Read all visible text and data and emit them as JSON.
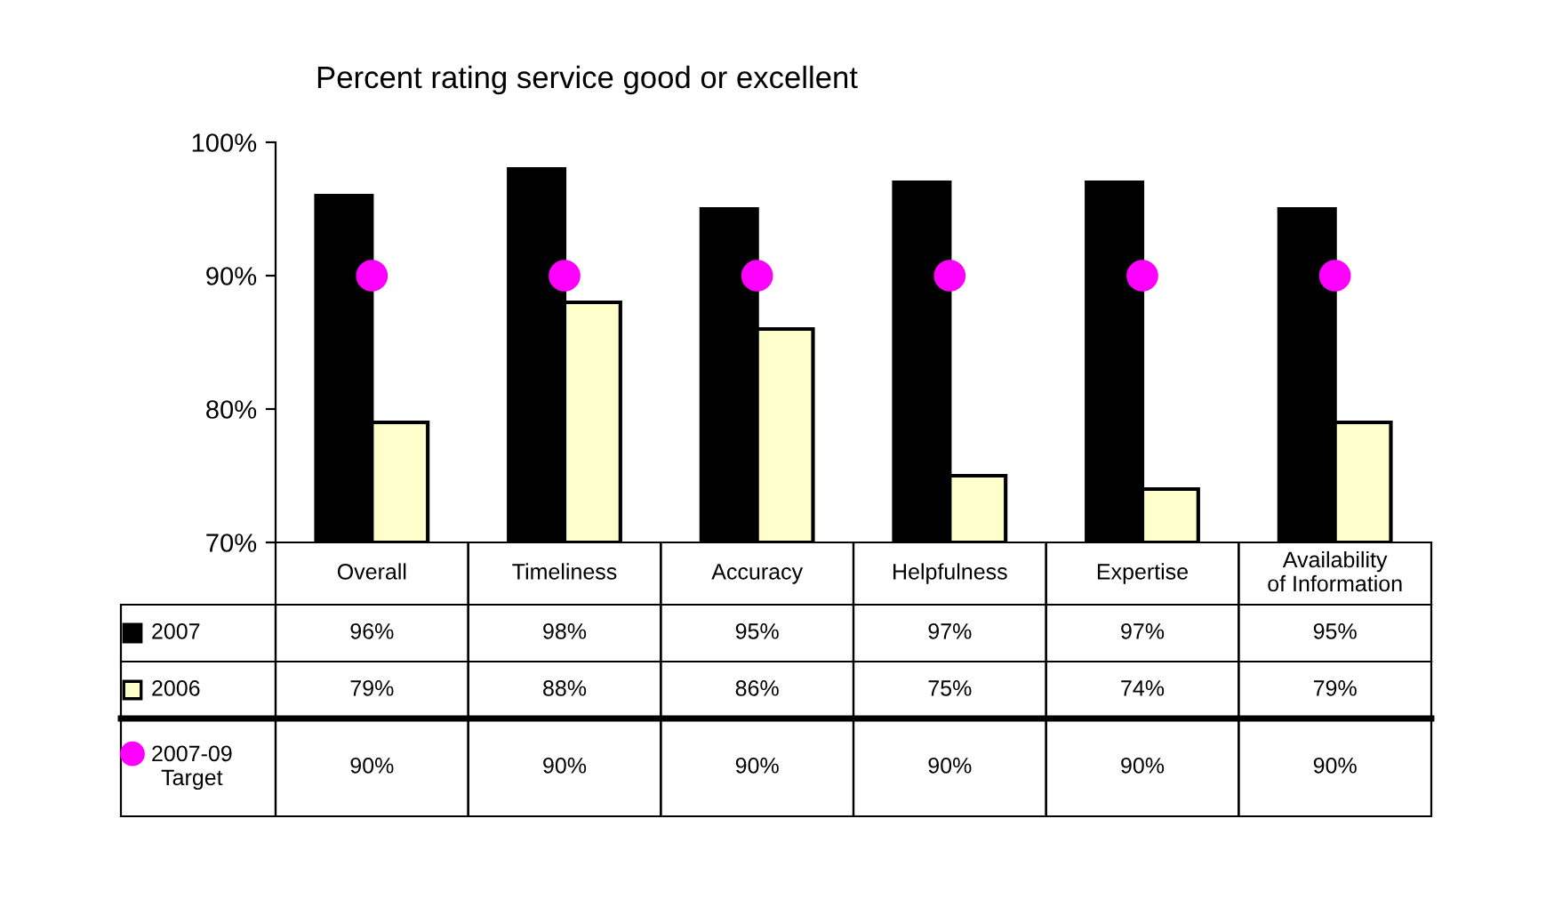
{
  "chart_data": {
    "type": "bar",
    "title": "Percent rating service good or excellent",
    "categories": [
      "Overall",
      "Timeliness",
      "Accuracy",
      "Helpfulness",
      "Expertise",
      "Availability of Information"
    ],
    "series": [
      {
        "name": "2007",
        "color": "#000000",
        "values": [
          96,
          98,
          95,
          97,
          97,
          95
        ],
        "value_labels": [
          "96%",
          "98%",
          "95%",
          "97%",
          "97%",
          "95%"
        ]
      },
      {
        "name": "2006",
        "color": "#ffffcc",
        "values": [
          79,
          88,
          86,
          75,
          74,
          79
        ],
        "value_labels": [
          "79%",
          "88%",
          "86%",
          "75%",
          "74%",
          "79%"
        ]
      },
      {
        "name": "2007-09 Target",
        "type": "scatter",
        "color": "#ff00ff",
        "marker": "circle",
        "x": [
          "Overall",
          "Timeliness",
          "Accuracy",
          "Helpfulness",
          "Expertise",
          "Availability of Information"
        ],
        "values": [
          90,
          90,
          90,
          90,
          90,
          90
        ],
        "value_labels": [
          "90%",
          "90%",
          "90%",
          "90%",
          "90%",
          "90%"
        ]
      }
    ],
    "ylim": [
      70,
      100
    ],
    "yticks": [
      {
        "value": 70,
        "label": "70%"
      },
      {
        "value": 80,
        "label": "80%"
      },
      {
        "value": 90,
        "label": "90%"
      },
      {
        "value": 100,
        "label": "100%"
      }
    ],
    "grid": false,
    "legend": "bottom left"
  }
}
